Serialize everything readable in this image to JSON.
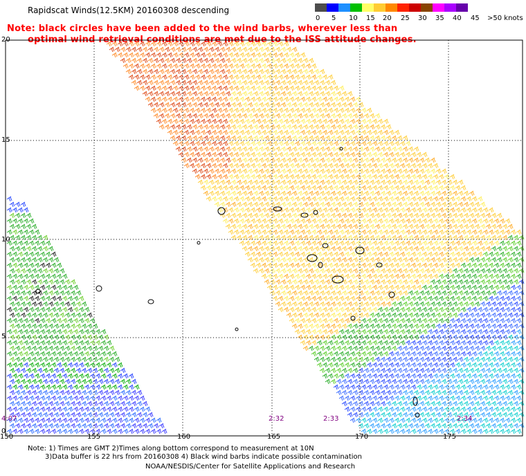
{
  "header": {
    "title": "Rapidscat Winds(12.5KM) 20160308 descending",
    "note_line1": "Note: black circles have been added to the wind barbs, wherever less than",
    "note_line2": "optimal wind retrieval conditions are met due to the ISS attitude changes."
  },
  "legend": {
    "colors": [
      "#4d4d4d",
      "#0000ff",
      "#1e90ff",
      "#00c000",
      "#ffff66",
      "#ffcc33",
      "#ff8800",
      "#ff2200",
      "#cc0000",
      "#884400",
      "#ff00ff",
      "#aa00ff",
      "#6600aa"
    ],
    "labels": [
      "0",
      "5",
      "10",
      "15",
      "20",
      "25",
      "30",
      "35",
      "40",
      "45",
      ">50 knots"
    ]
  },
  "axes": {
    "lat_labels": [
      "20",
      "15",
      "10",
      "5",
      "0"
    ],
    "lon_labels": [
      "150",
      "155",
      "160",
      "165",
      "170",
      "175"
    ],
    "times": [
      "4:07",
      "2:32",
      "2:33",
      "2:34"
    ]
  },
  "footer": {
    "line1": "Note: 1) Times are GMT 2)Times along bottom correspond to measurement at 10N",
    "line2": "3)Data buffer is 22 hrs from 20160308 4) Black wind barbs indicate possible contamination",
    "line3": "NOAA/NESDIS/Center for Satellite Applications and Research"
  }
}
